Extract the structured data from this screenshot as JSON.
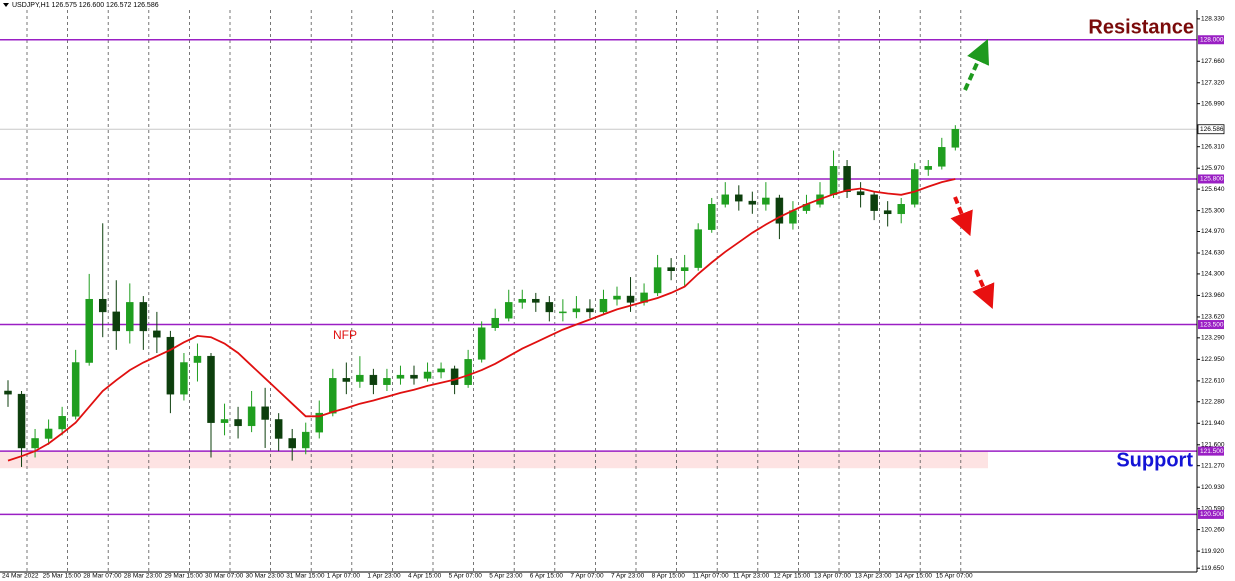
{
  "chart_data": {
    "type": "candlestick",
    "title": "USDJPY,H1  126.575 126.600 126.572 126.586",
    "categories": [
      "24 Mar 2022",
      "25 Mar 15:00",
      "28 Mar 07:00",
      "28 Mar 23:00",
      "29 Mar 15:00",
      "30 Mar 07:00",
      "30 Mar 23:00",
      "31 Mar 15:00",
      "1 Apr 07:00",
      "1 Apr 23:00",
      "4 Apr 15:00",
      "5 Apr 07:00",
      "5 Apr 23:00",
      "6 Apr 15:00",
      "7 Apr 07:00",
      "7 Apr 23:00",
      "8 Apr 15:00",
      "11 Apr 07:00",
      "11 Apr 23:00",
      "12 Apr 15:00",
      "13 Apr 07:00",
      "13 Apr 23:00",
      "14 Apr 15:00",
      "15 Apr 07:00"
    ],
    "candles": {
      "open": [
        122.45,
        122.4,
        121.55,
        121.7,
        121.85,
        122.05,
        122.9,
        123.9,
        123.7,
        123.4,
        123.85,
        123.4,
        123.3,
        122.4,
        122.9,
        123.0,
        121.95,
        122.0,
        121.9,
        122.2,
        122.0,
        121.7,
        121.55,
        121.8,
        122.1,
        122.65,
        122.6,
        122.7,
        122.55,
        122.65,
        122.7,
        122.65,
        122.75,
        122.8,
        122.55,
        122.95,
        123.45,
        123.6,
        123.85,
        123.9,
        123.85,
        123.7,
        123.7,
        123.75,
        123.7,
        123.9,
        123.95,
        123.85,
        124.0,
        124.4,
        124.35,
        124.4,
        125.0,
        125.4,
        125.55,
        125.45,
        125.4,
        125.5,
        125.1,
        125.3,
        125.4,
        125.55,
        126.0,
        125.6,
        125.55,
        125.3,
        125.25,
        125.4,
        125.95,
        126.0,
        126.3
      ],
      "high": [
        122.62,
        122.45,
        121.85,
        122.0,
        122.2,
        123.1,
        124.3,
        125.1,
        124.2,
        124.15,
        123.95,
        123.7,
        123.4,
        123.05,
        123.2,
        123.05,
        122.25,
        122.2,
        122.45,
        122.5,
        122.1,
        121.85,
        121.95,
        122.3,
        122.8,
        122.9,
        123.0,
        122.8,
        122.8,
        122.85,
        122.85,
        122.9,
        122.9,
        122.85,
        123.1,
        123.55,
        123.75,
        124.05,
        124.05,
        124.0,
        123.95,
        123.9,
        123.95,
        123.9,
        124.05,
        124.1,
        124.25,
        124.15,
        124.6,
        124.55,
        124.6,
        125.1,
        125.5,
        125.75,
        125.7,
        125.6,
        125.75,
        125.55,
        125.45,
        125.55,
        125.75,
        126.25,
        126.1,
        125.75,
        125.6,
        125.45,
        125.5,
        126.05,
        126.1,
        126.45,
        126.65
      ],
      "low": [
        122.2,
        121.25,
        121.4,
        121.6,
        121.75,
        122.0,
        122.85,
        123.3,
        123.1,
        123.2,
        123.1,
        123.05,
        122.1,
        122.3,
        122.6,
        121.4,
        121.75,
        121.7,
        121.8,
        121.55,
        121.5,
        121.35,
        121.45,
        121.7,
        122.05,
        122.4,
        122.5,
        122.4,
        122.45,
        122.55,
        122.55,
        122.6,
        122.65,
        122.4,
        122.5,
        122.9,
        123.4,
        123.55,
        123.75,
        123.7,
        123.55,
        123.55,
        123.6,
        123.6,
        123.65,
        123.8,
        123.7,
        123.8,
        123.95,
        124.2,
        124.1,
        124.35,
        124.95,
        125.35,
        125.3,
        125.25,
        125.3,
        124.85,
        125.0,
        125.25,
        125.35,
        125.5,
        125.5,
        125.35,
        125.15,
        125.05,
        125.1,
        125.35,
        125.85,
        125.95,
        126.25
      ],
      "close": [
        122.4,
        121.55,
        121.7,
        121.85,
        122.05,
        122.9,
        123.9,
        123.7,
        123.4,
        123.85,
        123.4,
        123.3,
        122.4,
        122.9,
        123.0,
        121.95,
        122.0,
        121.9,
        122.2,
        122.0,
        121.7,
        121.55,
        121.8,
        122.1,
        122.65,
        122.6,
        122.7,
        122.55,
        122.65,
        122.7,
        122.65,
        122.75,
        122.8,
        122.55,
        122.95,
        123.45,
        123.6,
        123.85,
        123.9,
        123.85,
        123.7,
        123.7,
        123.75,
        123.7,
        123.9,
        123.95,
        123.85,
        124.0,
        124.4,
        124.35,
        124.4,
        125.0,
        125.4,
        125.55,
        125.45,
        125.4,
        125.5,
        125.1,
        125.3,
        125.4,
        125.55,
        126.0,
        125.6,
        125.55,
        125.3,
        125.25,
        125.4,
        125.95,
        126.0,
        126.3,
        126.586
      ]
    },
    "up_color": "#1f9e1f",
    "down_color": "#0d3f0d",
    "moving_average": {
      "color": "#e01010",
      "values": [
        121.35,
        121.42,
        121.5,
        121.62,
        121.78,
        121.95,
        122.2,
        122.45,
        122.62,
        122.78,
        122.9,
        123.0,
        123.1,
        123.22,
        123.32,
        123.3,
        123.2,
        123.05,
        122.85,
        122.65,
        122.45,
        122.25,
        122.05,
        122.05,
        122.12,
        122.18,
        122.25,
        122.3,
        122.36,
        122.42,
        122.47,
        122.53,
        122.58,
        122.63,
        122.7,
        122.78,
        122.88,
        123.0,
        123.12,
        123.22,
        123.32,
        123.42,
        123.5,
        123.58,
        123.66,
        123.74,
        123.8,
        123.86,
        123.92,
        124.0,
        124.1,
        124.3,
        124.48,
        124.65,
        124.8,
        124.95,
        125.08,
        125.2,
        125.3,
        125.4,
        125.48,
        125.56,
        125.62,
        125.65,
        125.6,
        125.57,
        125.55,
        125.6,
        125.68,
        125.75,
        125.8
      ]
    },
    "ylim": [
      119.59,
      128.47
    ],
    "yticks": [
      {
        "value": 128.33,
        "label": "128.330"
      },
      {
        "value": 127.66,
        "label": "127.660"
      },
      {
        "value": 127.32,
        "label": "127.320"
      },
      {
        "value": 126.99,
        "label": "126.990"
      },
      {
        "value": 126.31,
        "label": "126.310"
      },
      {
        "value": 125.97,
        "label": "125.970"
      },
      {
        "value": 125.64,
        "label": "125.640"
      },
      {
        "value": 125.3,
        "label": "125.300"
      },
      {
        "value": 124.97,
        "label": "124.970"
      },
      {
        "value": 124.63,
        "label": "124.630"
      },
      {
        "value": 124.3,
        "label": "124.300"
      },
      {
        "value": 123.96,
        "label": "123.960"
      },
      {
        "value": 123.62,
        "label": "123.620"
      },
      {
        "value": 123.29,
        "label": "123.290"
      },
      {
        "value": 122.95,
        "label": "122.950"
      },
      {
        "value": 122.61,
        "label": "122.610"
      },
      {
        "value": 122.28,
        "label": "122.280"
      },
      {
        "value": 121.94,
        "label": "121.940"
      },
      {
        "value": 121.6,
        "label": "121.600"
      },
      {
        "value": 121.27,
        "label": "121.270"
      },
      {
        "value": 120.93,
        "label": "120.930"
      },
      {
        "value": 120.59,
        "label": "120.590"
      },
      {
        "value": 120.26,
        "label": "120.260"
      },
      {
        "value": 119.92,
        "label": "119.920"
      },
      {
        "value": 119.65,
        "label": "119.650"
      }
    ],
    "levels": [
      {
        "value": 128.0,
        "label": "128.000"
      },
      {
        "value": 125.8,
        "label": "125.800"
      },
      {
        "value": 123.5,
        "label": "123.500"
      },
      {
        "value": 121.5,
        "label": "121.500"
      },
      {
        "value": 120.5,
        "label": "120.500"
      }
    ],
    "level_color": "#9a1fc4",
    "support_zone": [
      121.23,
      121.5
    ],
    "current_price": {
      "value": 126.586,
      "label": "126.586"
    },
    "annotations": {
      "resistance": "Resistance",
      "support": "Support",
      "nfp": "NFP"
    }
  }
}
